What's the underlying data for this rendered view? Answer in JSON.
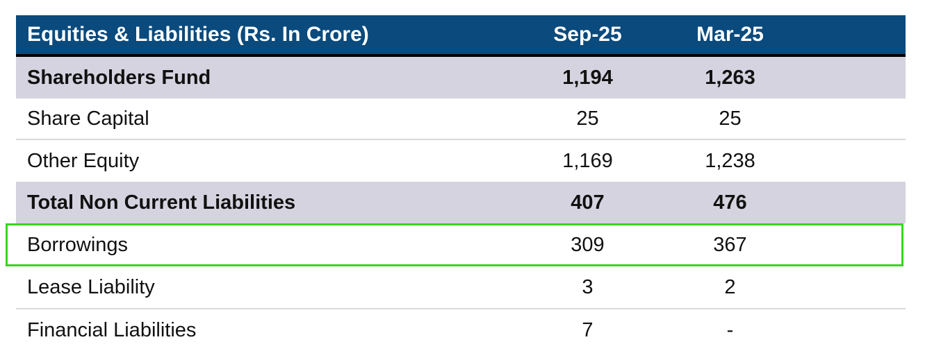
{
  "table": {
    "title_note": "Equities & Liabilities balance sheet extract",
    "header": {
      "label": "Equities & Liabilities (Rs. In Crore)",
      "sep25": "Sep-25",
      "mar25": "Mar-25"
    },
    "rows": [
      {
        "label": "Shareholders Fund",
        "sep25": "1,194",
        "mar25": "1,263",
        "style": "band-bold"
      },
      {
        "label": "Share Capital",
        "sep25": "25",
        "mar25": "25",
        "style": "plain"
      },
      {
        "label": "Other Equity",
        "sep25": "1,169",
        "mar25": "1,238",
        "style": "plain"
      },
      {
        "label": "Total Non Current Liabilities",
        "sep25": "407",
        "mar25": "476",
        "style": "band-bold"
      },
      {
        "label": "Borrowings",
        "sep25": "309",
        "mar25": "367",
        "style": "highlighted"
      },
      {
        "label": "Lease Liability",
        "sep25": "3",
        "mar25": "2",
        "style": "plain"
      },
      {
        "label": "Financial Liabilities",
        "sep25": "7",
        "mar25": "-",
        "style": "plain"
      }
    ],
    "colors": {
      "header_bg": "#0a4a7d",
      "header_text": "#ffffff",
      "band_bg": "#d4d3df",
      "divider": "#d9d9d9",
      "header_underline": "#000000",
      "highlight_border": "#38d41e",
      "text": "#111111"
    }
  }
}
